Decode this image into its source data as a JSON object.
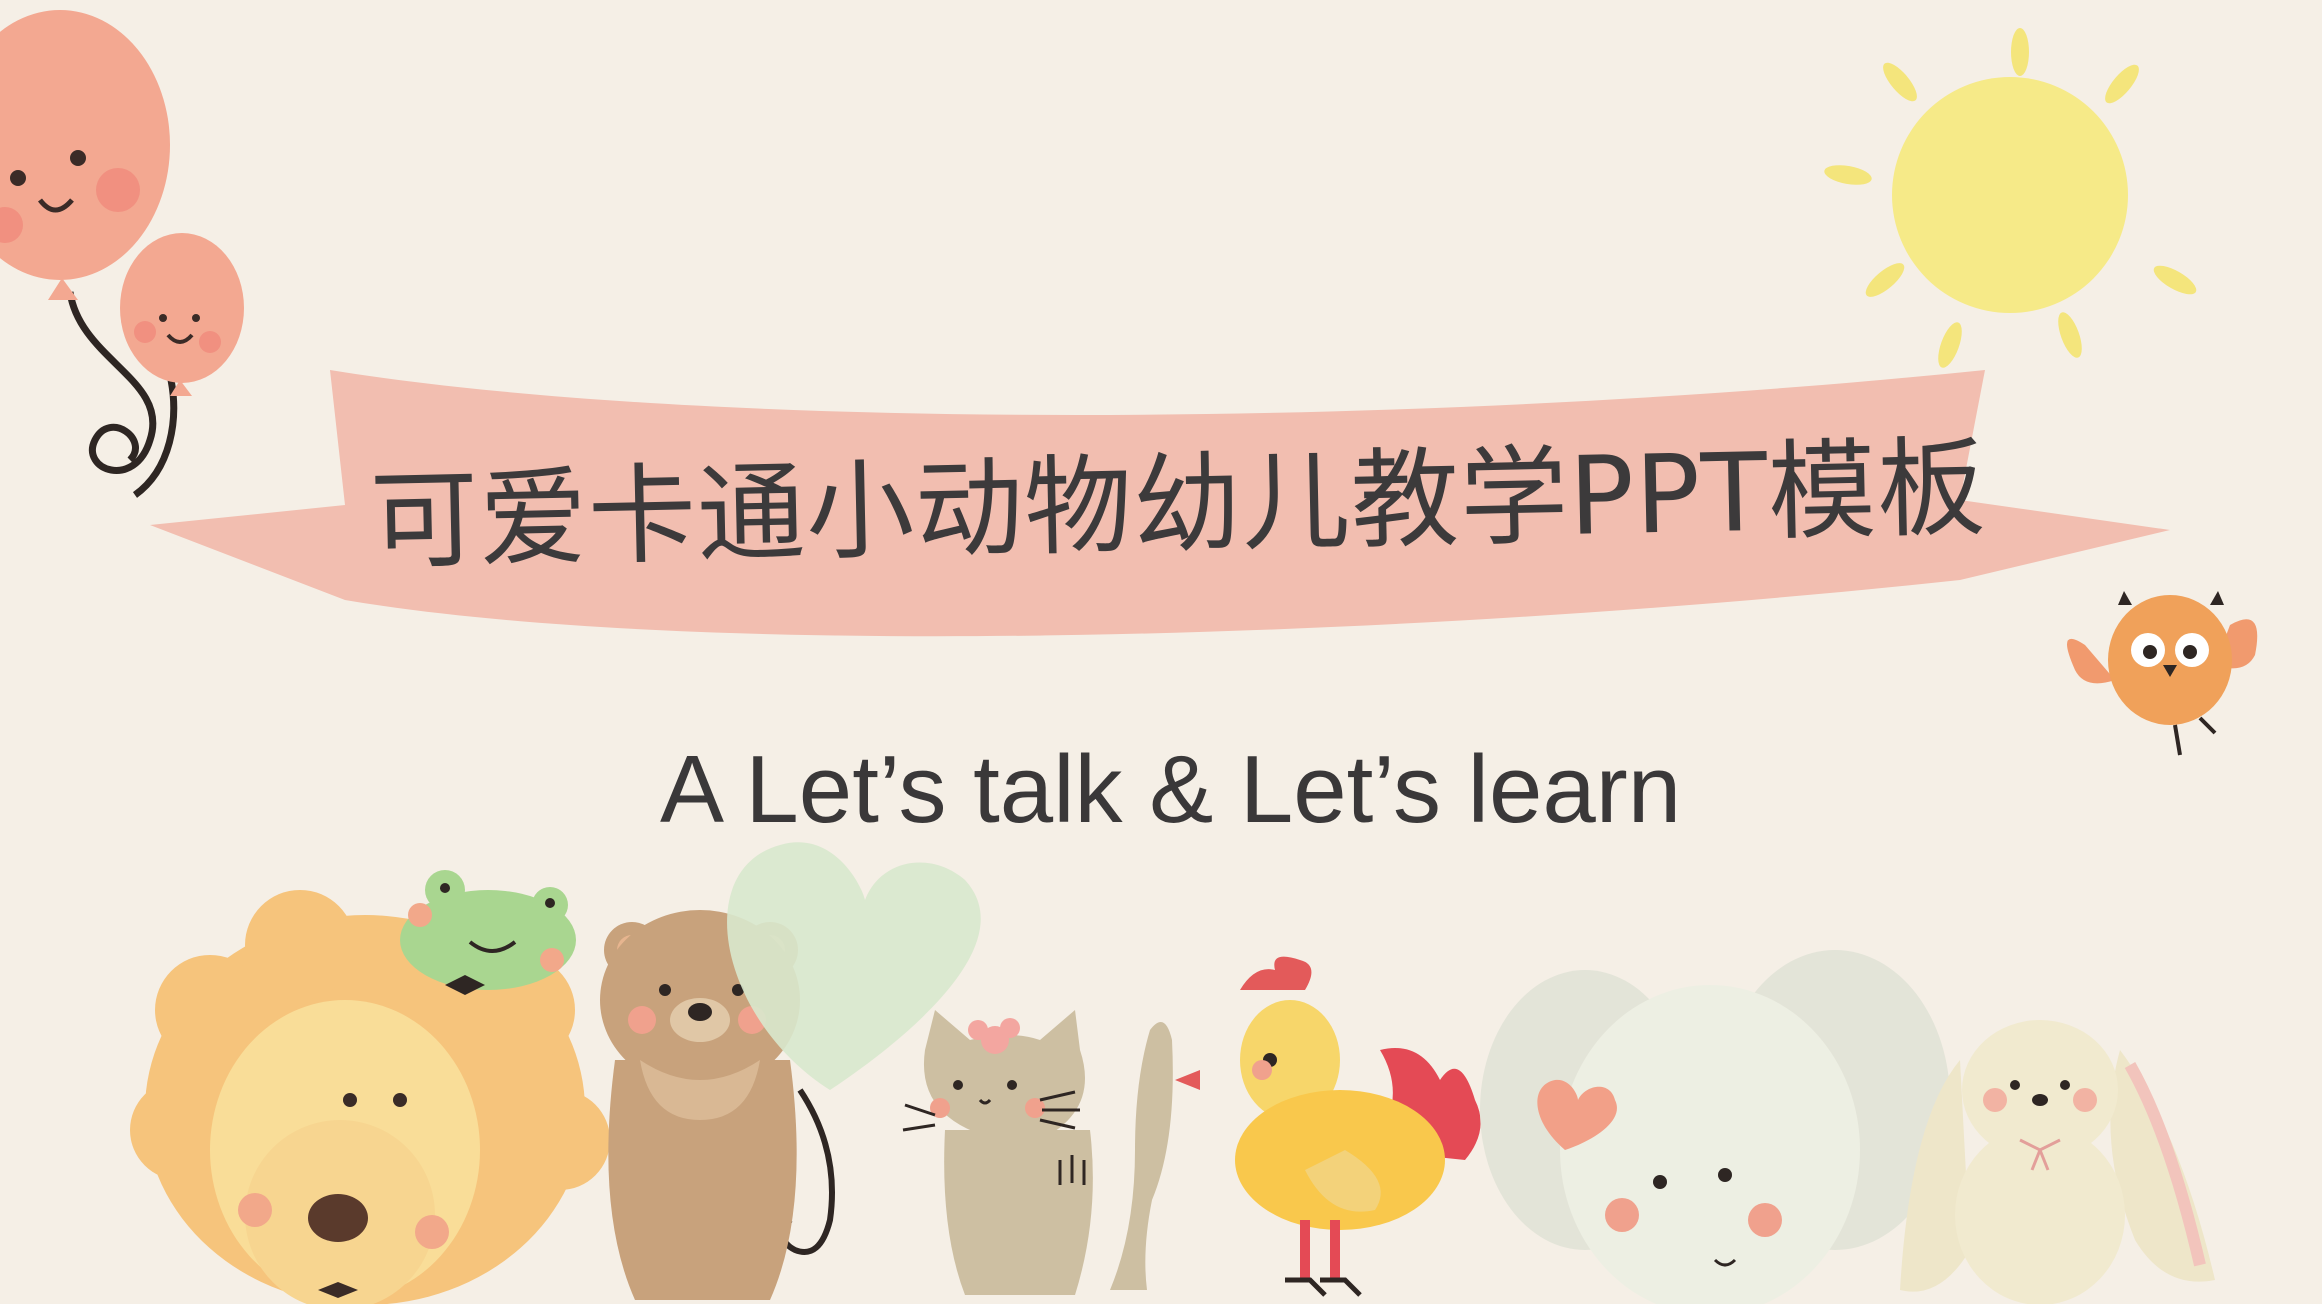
{
  "slide": {
    "title": "可爱卡通小动物幼儿教学PPT模板",
    "subtitle": "A Let’s talk & Let’s learn"
  },
  "colors": {
    "background": "#f5efe6",
    "banner": "#f2beb0",
    "text": "#3c3a3b",
    "sun": "#f6ea88",
    "balloon": "#f3a891"
  },
  "decorations": [
    "balloon-pair-icon",
    "sun-icon",
    "owl-icon",
    "lion-icon",
    "frog-icon",
    "bear-icon",
    "heart-balloon-icon",
    "cat-icon",
    "rooster-icon",
    "elephant-icon",
    "rabbit-icon"
  ]
}
